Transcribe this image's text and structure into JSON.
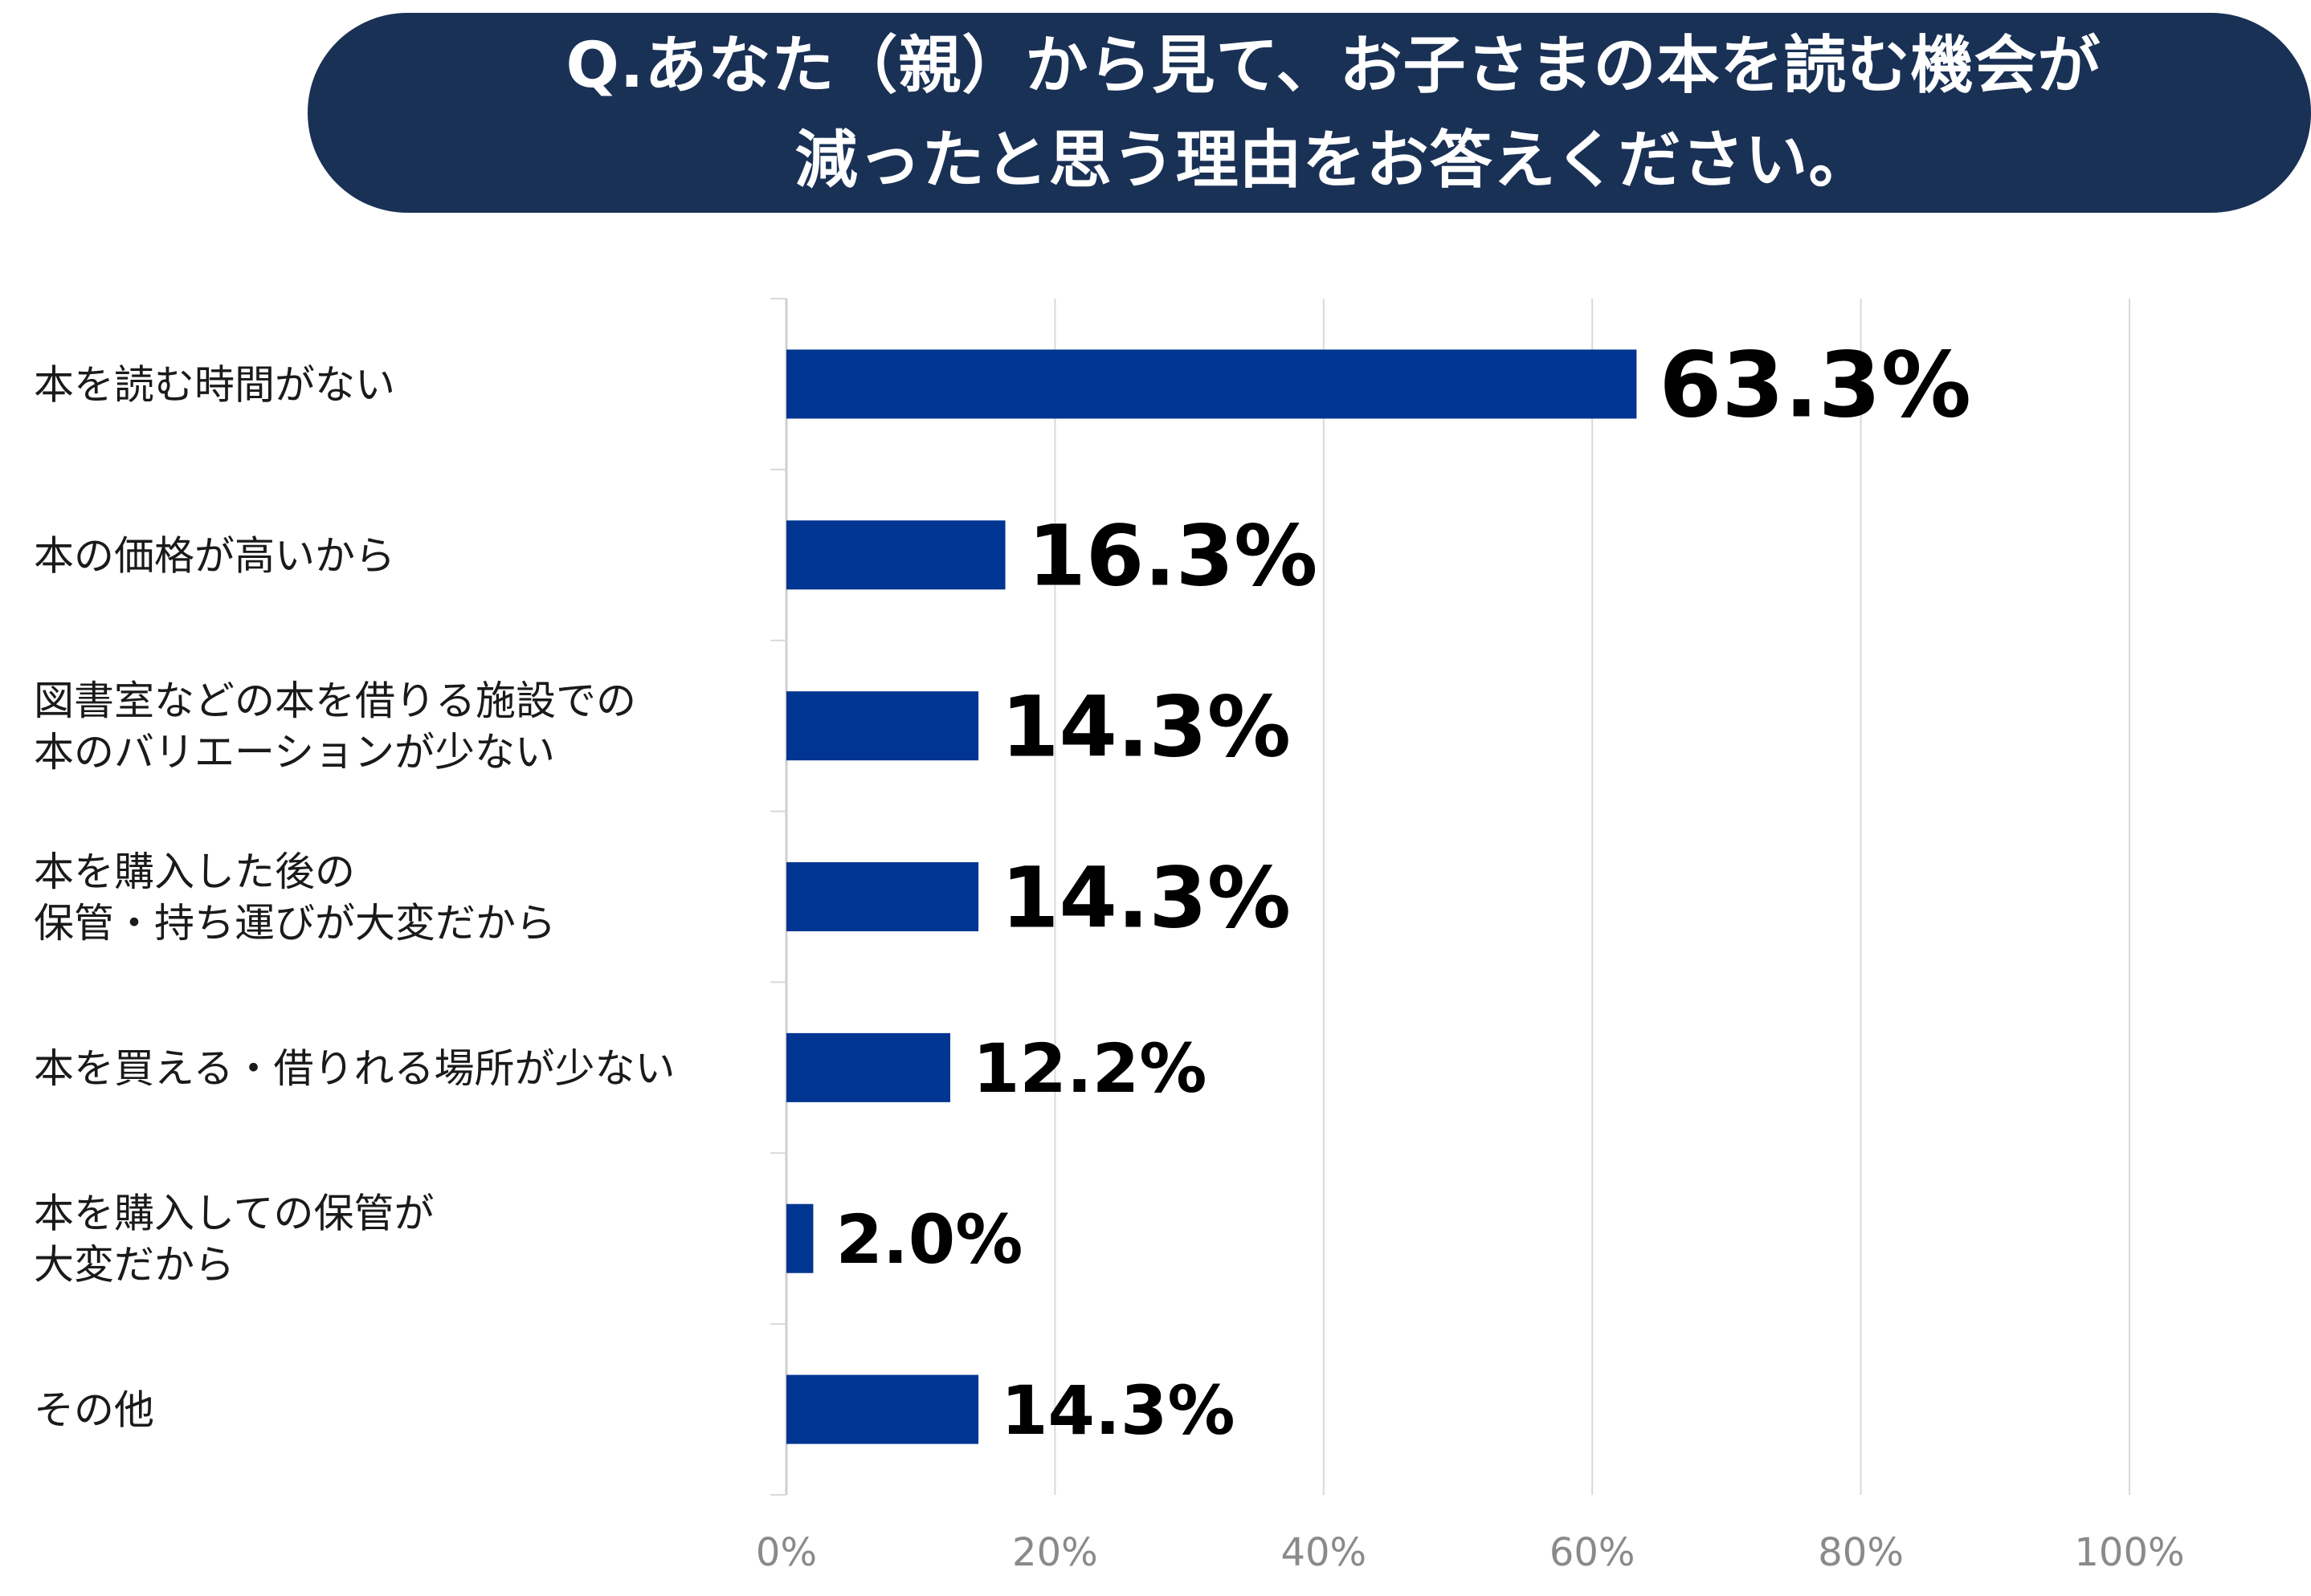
{
  "title": {
    "line1": "Q.あなた（親）から見て、お子さまの本を読む機会が",
    "line2": "減ったと思う理由をお答えください。"
  },
  "colors": {
    "banner": "#1a3156",
    "bar": "#003591",
    "grid": "#d9d9d9",
    "tick_text": "#8a8a8a"
  },
  "chart_data": {
    "type": "bar",
    "orientation": "horizontal",
    "title": "Q.あなた（親）から見て、お子さまの本を読む機会が減ったと思う理由をお答えください。",
    "categories": [
      [
        "本を読む時間がない"
      ],
      [
        "本の価格が高いから"
      ],
      [
        "図書室などの本を借りる施設での",
        "本のバリエーションが少ない"
      ],
      [
        "本を購入した後の",
        "保管・持ち運びが大変だから"
      ],
      [
        "本を買える・借りれる場所が少ない"
      ],
      [
        "本を購入しての保管が",
        "大変だから"
      ],
      [
        "その他"
      ]
    ],
    "values": [
      63.3,
      16.3,
      14.3,
      14.3,
      12.2,
      2.0,
      14.3
    ],
    "value_labels": [
      "63.3%",
      "16.3%",
      "14.3%",
      "14.3%",
      "12.2%",
      "2.0%",
      "14.3%"
    ],
    "xlim": [
      0,
      100
    ],
    "xticks": [
      "0%",
      "20%",
      "40%",
      "60%",
      "80%",
      "100%"
    ],
    "grid": true,
    "xlabel": "",
    "ylabel": ""
  }
}
